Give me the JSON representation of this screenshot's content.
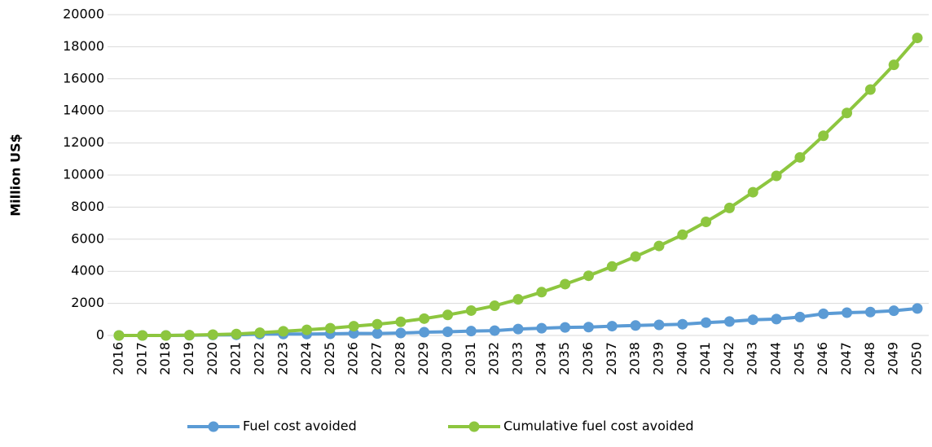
{
  "chart_data": {
    "type": "line",
    "y_axis_label": "Million US$",
    "categories": [
      "2016",
      "2017",
      "2018",
      "2019",
      "2020",
      "2021",
      "2022",
      "2023",
      "2024",
      "2025",
      "2026",
      "2027",
      "2028",
      "2029",
      "2030",
      "2031",
      "2032",
      "2033",
      "2034",
      "2035",
      "2036",
      "2037",
      "2038",
      "2039",
      "2040",
      "2041",
      "2042",
      "2043",
      "2044",
      "2045",
      "2046",
      "2047",
      "2048",
      "2049",
      "2050"
    ],
    "series": [
      {
        "name": "Fuel cost avoided",
        "color": "#5b9bd5",
        "values": [
          0,
          0,
          0,
          10,
          30,
          40,
          80,
          90,
          90,
          100,
          130,
          120,
          150,
          200,
          230,
          270,
          300,
          400,
          450,
          500,
          520,
          580,
          620,
          660,
          700,
          800,
          870,
          980,
          1020,
          1150,
          1350,
          1420,
          1460,
          1540,
          1680
        ]
      },
      {
        "name": "Cumulative fuel cost avoided",
        "color": "#8dc63f",
        "values": [
          0,
          0,
          0,
          20,
          50,
          90,
          170,
          260,
          350,
          450,
          580,
          700,
          850,
          1050,
          1280,
          1550,
          1850,
          2250,
          2700,
          3200,
          3720,
          4300,
          4920,
          5580,
          6280,
          7080,
          7950,
          8930,
          9950,
          11100,
          12450,
          13870,
          15330,
          16870,
          18550
        ]
      }
    ],
    "ylim": [
      0,
      20000
    ],
    "yticks": [
      0,
      2000,
      4000,
      6000,
      8000,
      10000,
      12000,
      14000,
      16000,
      18000,
      20000
    ],
    "grid": true
  }
}
